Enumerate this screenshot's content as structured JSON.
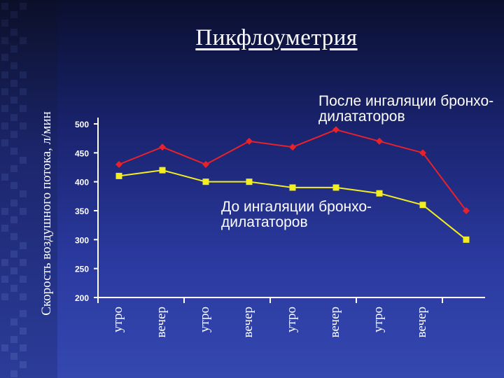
{
  "slide": {
    "title": "Пикфлоуметрия"
  },
  "colors": {
    "after": "#e8222a",
    "before": "#f2ee22",
    "axis": "#ffffff",
    "text": "#ffffff"
  },
  "chart_data": {
    "type": "line",
    "title": "Пикфлоуметрия",
    "xlabel": "",
    "ylabel": "Скорость воздушного потока, л/мин",
    "ylim": [
      200,
      500
    ],
    "yticks": [
      200,
      250,
      300,
      350,
      400,
      450,
      500
    ],
    "categories": [
      "утро",
      "вечер",
      "утро",
      "вечер",
      "утро",
      "вечер",
      "утро",
      "вечер",
      ""
    ],
    "series": [
      {
        "name": "После ингаляции бронхо-\nдилататоров",
        "values": [
          430,
          460,
          430,
          470,
          460,
          490,
          470,
          450,
          350
        ]
      },
      {
        "name": "До ингаляции бронхо-\nдилататоров",
        "values": [
          410,
          420,
          400,
          400,
          390,
          390,
          380,
          360,
          300
        ]
      }
    ],
    "grid": false
  }
}
